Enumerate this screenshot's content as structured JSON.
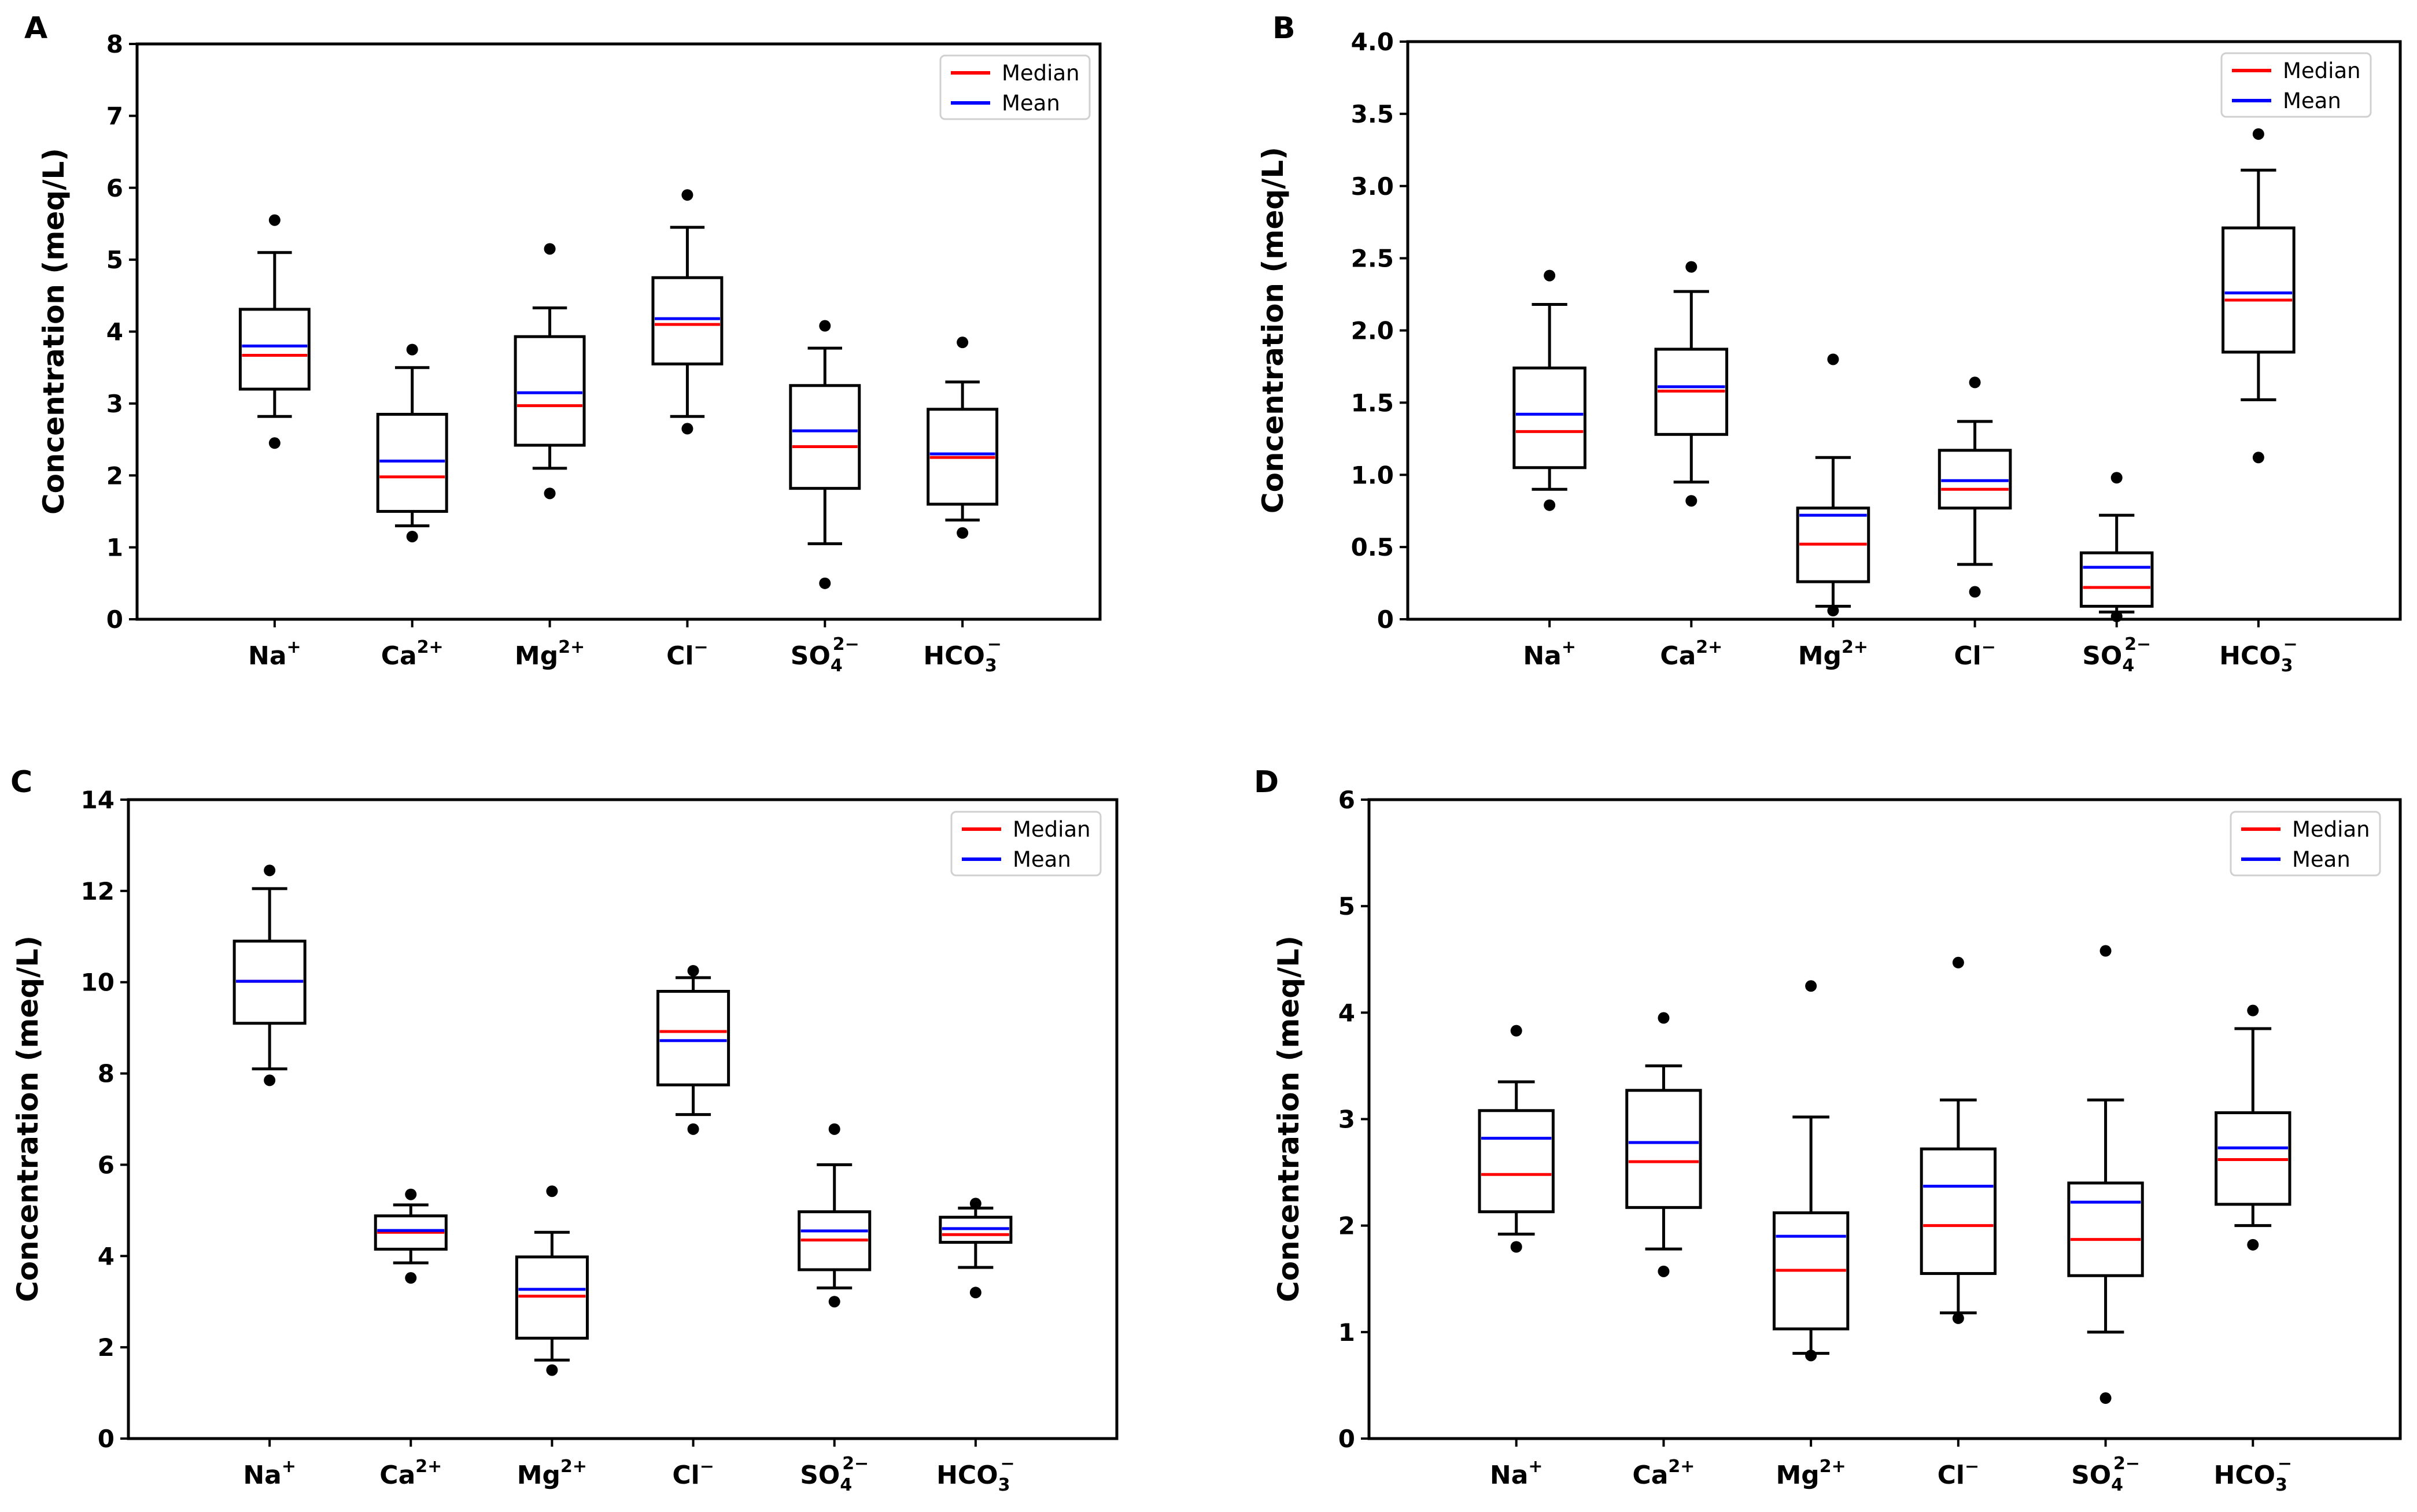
{
  "colors": {
    "median": "#ff0000",
    "mean": "#0000ff",
    "box": "#000000",
    "background": "#ffffff"
  },
  "shared": {
    "ylabel": "Concentration (meq/L)",
    "ions": [
      {
        "base": "Na",
        "sub": "",
        "sup": "+"
      },
      {
        "base": "Ca",
        "sub": "",
        "sup": "2+"
      },
      {
        "base": "Mg",
        "sub": "",
        "sup": "2+"
      },
      {
        "base": "Cl",
        "sub": "",
        "sup": "−"
      },
      {
        "base": "SO",
        "sub": "4",
        "sup": "2−"
      },
      {
        "base": "HCO",
        "sub": "3",
        "sup": "−"
      }
    ],
    "legend": {
      "median_label": "Median",
      "mean_label": "Mean",
      "position": "top-right"
    }
  },
  "chart_data": [
    {
      "type": "box",
      "panel": "A",
      "ylim": [
        0,
        8
      ],
      "yticks": [
        0,
        1,
        2,
        3,
        4,
        5,
        6,
        7,
        8
      ],
      "ytick_labels": [
        "0",
        "1",
        "2",
        "3",
        "4",
        "5",
        "6",
        "7",
        "8"
      ],
      "boxes": [
        {
          "lw": 2.82,
          "q1": 3.2,
          "median": 3.67,
          "mean": 3.8,
          "q3": 4.31,
          "uw": 5.1,
          "outliers": [
            2.45,
            5.55
          ]
        },
        {
          "lw": 1.3,
          "q1": 1.5,
          "median": 1.98,
          "mean": 2.2,
          "q3": 2.85,
          "uw": 3.5,
          "outliers": [
            1.15,
            3.75
          ]
        },
        {
          "lw": 2.1,
          "q1": 2.42,
          "median": 2.97,
          "mean": 3.15,
          "q3": 3.93,
          "uw": 4.33,
          "outliers": [
            1.75,
            5.15
          ]
        },
        {
          "lw": 2.82,
          "q1": 3.55,
          "median": 4.1,
          "mean": 4.18,
          "q3": 4.75,
          "uw": 5.45,
          "outliers": [
            2.65,
            5.9
          ]
        },
        {
          "lw": 1.05,
          "q1": 1.82,
          "median": 2.4,
          "mean": 2.62,
          "q3": 3.25,
          "uw": 3.77,
          "outliers": [
            0.5,
            4.08
          ]
        },
        {
          "lw": 1.38,
          "q1": 1.6,
          "median": 2.25,
          "mean": 2.3,
          "q3": 2.92,
          "uw": 3.3,
          "outliers": [
            1.2,
            3.85
          ]
        }
      ]
    },
    {
      "type": "box",
      "panel": "B",
      "ylim": [
        0,
        4
      ],
      "yticks": [
        0,
        0.5,
        1,
        1.5,
        2,
        2.5,
        3,
        3.5,
        4
      ],
      "ytick_labels": [
        "0",
        "0.5",
        "1.0",
        "1.5",
        "2.0",
        "2.5",
        "3.0",
        "3.5",
        "4.0"
      ],
      "boxes": [
        {
          "lw": 0.9,
          "q1": 1.05,
          "median": 1.3,
          "mean": 1.42,
          "q3": 1.74,
          "uw": 2.18,
          "outliers": [
            0.79,
            2.38
          ]
        },
        {
          "lw": 0.95,
          "q1": 1.28,
          "median": 1.58,
          "mean": 1.61,
          "q3": 1.87,
          "uw": 2.27,
          "outliers": [
            0.82,
            2.44
          ]
        },
        {
          "lw": 0.09,
          "q1": 0.26,
          "median": 0.52,
          "mean": 0.72,
          "q3": 0.77,
          "uw": 1.12,
          "outliers": [
            0.06,
            1.8
          ]
        },
        {
          "lw": 0.38,
          "q1": 0.77,
          "median": 0.9,
          "mean": 0.96,
          "q3": 1.17,
          "uw": 1.37,
          "outliers": [
            0.19,
            1.64
          ]
        },
        {
          "lw": 0.05,
          "q1": 0.09,
          "median": 0.22,
          "mean": 0.36,
          "q3": 0.46,
          "uw": 0.72,
          "outliers": [
            0.02,
            0.98
          ]
        },
        {
          "lw": 1.52,
          "q1": 1.85,
          "median": 2.21,
          "mean": 2.26,
          "q3": 2.71,
          "uw": 3.11,
          "outliers": [
            1.12,
            3.36
          ]
        }
      ]
    },
    {
      "type": "box",
      "panel": "C",
      "ylim": [
        0,
        14
      ],
      "yticks": [
        0,
        2,
        4,
        6,
        8,
        10,
        12,
        14
      ],
      "ytick_labels": [
        "0",
        "2",
        "4",
        "6",
        "8",
        "10",
        "12",
        "14"
      ],
      "boxes": [
        {
          "lw": 8.1,
          "q1": 9.1,
          "median": 10.02,
          "mean": 10.02,
          "q3": 10.9,
          "uw": 12.05,
          "outliers": [
            7.85,
            12.45
          ]
        },
        {
          "lw": 3.85,
          "q1": 4.15,
          "median": 4.52,
          "mean": 4.56,
          "q3": 4.88,
          "uw": 5.12,
          "outliers": [
            3.52,
            5.35
          ]
        },
        {
          "lw": 1.72,
          "q1": 2.2,
          "median": 3.12,
          "mean": 3.27,
          "q3": 3.98,
          "uw": 4.52,
          "outliers": [
            1.5,
            5.42
          ]
        },
        {
          "lw": 7.1,
          "q1": 7.75,
          "median": 8.92,
          "mean": 8.72,
          "q3": 9.8,
          "uw": 10.1,
          "outliers": [
            6.78,
            10.25
          ]
        },
        {
          "lw": 3.3,
          "q1": 3.7,
          "median": 4.35,
          "mean": 4.55,
          "q3": 4.97,
          "uw": 6.0,
          "outliers": [
            3.0,
            6.78
          ]
        },
        {
          "lw": 3.75,
          "q1": 4.3,
          "median": 4.47,
          "mean": 4.6,
          "q3": 4.85,
          "uw": 5.05,
          "outliers": [
            3.2,
            5.15
          ]
        }
      ]
    },
    {
      "type": "box",
      "panel": "D",
      "ylim": [
        0,
        6
      ],
      "yticks": [
        0,
        1,
        2,
        3,
        4,
        5,
        6
      ],
      "ytick_labels": [
        "0",
        "1",
        "2",
        "3",
        "4",
        "5",
        "6"
      ],
      "boxes": [
        {
          "lw": 1.92,
          "q1": 2.13,
          "median": 2.48,
          "mean": 2.82,
          "q3": 3.08,
          "uw": 3.35,
          "outliers": [
            1.8,
            3.83
          ]
        },
        {
          "lw": 1.78,
          "q1": 2.17,
          "median": 2.6,
          "mean": 2.78,
          "q3": 3.27,
          "uw": 3.5,
          "outliers": [
            1.57,
            3.95
          ]
        },
        {
          "lw": 0.8,
          "q1": 1.03,
          "median": 1.58,
          "mean": 1.9,
          "q3": 2.12,
          "uw": 3.02,
          "outliers": [
            0.78,
            4.25
          ]
        },
        {
          "lw": 1.18,
          "q1": 1.55,
          "median": 2.0,
          "mean": 2.37,
          "q3": 2.72,
          "uw": 3.18,
          "outliers": [
            1.13,
            4.47
          ]
        },
        {
          "lw": 1.0,
          "q1": 1.53,
          "median": 1.87,
          "mean": 2.22,
          "q3": 2.4,
          "uw": 3.18,
          "outliers": [
            0.38,
            4.58
          ]
        },
        {
          "lw": 2.0,
          "q1": 2.2,
          "median": 2.62,
          "mean": 2.73,
          "q3": 3.06,
          "uw": 3.85,
          "outliers": [
            1.82,
            4.02
          ]
        }
      ]
    }
  ]
}
